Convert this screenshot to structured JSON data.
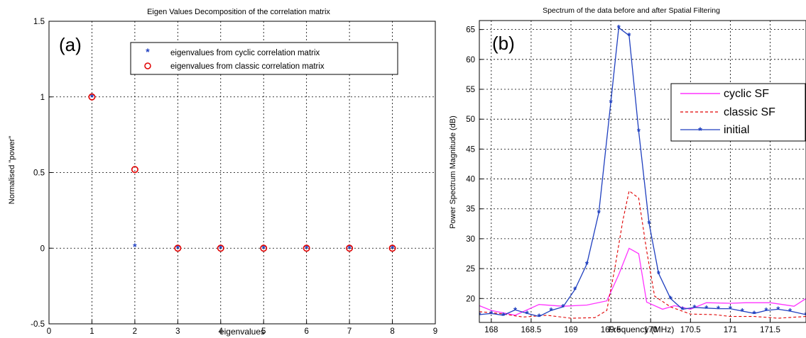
{
  "chart_data": [
    {
      "type": "scatter",
      "panel_label": "(a)",
      "title": "Eigen Values Decomposition of the correlation matrix",
      "xlabel": "eigenvalues",
      "ylabel": "Normalised \"power\"",
      "xlim": [
        0,
        9
      ],
      "ylim": [
        -0.5,
        1.5
      ],
      "xticks": [
        0,
        1,
        2,
        3,
        4,
        5,
        6,
        7,
        8,
        9
      ],
      "yticks": [
        -0.5,
        0,
        0.5,
        1,
        1.5
      ],
      "grid": true,
      "legend_position": "top-right",
      "series": [
        {
          "name": "eigenvalues from cyclic correlation matrix",
          "marker": "star",
          "color": "#1f3fbf",
          "x": [
            1,
            2,
            3,
            4,
            5,
            6,
            7,
            8
          ],
          "y": [
            1.0,
            0.01,
            0.0,
            0.0,
            0.0,
            0.0,
            0.0,
            0.0
          ]
        },
        {
          "name": "eigenvalues from classic correlation matrix",
          "marker": "circle",
          "color": "#e00000",
          "x": [
            1,
            2,
            3,
            4,
            5,
            6,
            7,
            8
          ],
          "y": [
            1.0,
            0.52,
            0.0,
            0.0,
            0.0,
            0.0,
            0.0,
            0.0
          ]
        }
      ]
    },
    {
      "type": "line",
      "panel_label": "(b)",
      "title": "Spectrum of the data before and after Spatial Filtering",
      "xlabel": "Frequency (MHz)",
      "ylabel": "Power Spectrum Magnitude (dB)",
      "xlim": [
        167.85,
        171.95
      ],
      "ylim": [
        16,
        66.5
      ],
      "xticks": [
        168,
        168.5,
        169,
        169.5,
        170,
        170.5,
        171,
        171.5
      ],
      "yticks": [
        20,
        25,
        30,
        35,
        40,
        45,
        50,
        55,
        60,
        65
      ],
      "grid": true,
      "legend_position": "right",
      "series": [
        {
          "name": "cyclic SF",
          "style": "solid",
          "color": "#ff33ff",
          "x": [
            167.85,
            168.0,
            168.3,
            168.6,
            168.9,
            169.2,
            169.45,
            169.6,
            169.73,
            169.85,
            169.95,
            170.15,
            170.3,
            170.5,
            170.7,
            171.0,
            171.2,
            171.5,
            171.8,
            171.95
          ],
          "y": [
            18.8,
            18.0,
            17.2,
            19.0,
            18.7,
            18.9,
            19.6,
            24.0,
            28.4,
            27.5,
            19.4,
            18.2,
            18.8,
            18.2,
            19.3,
            19.2,
            19.3,
            19.3,
            18.7,
            20.0
          ]
        },
        {
          "name": "classic SF",
          "style": "dashed",
          "color": "#e00000",
          "x": [
            167.85,
            168.1,
            168.4,
            168.7,
            169.0,
            169.3,
            169.45,
            169.55,
            169.65,
            169.73,
            169.85,
            169.95,
            170.05,
            170.25,
            170.5,
            170.8,
            171.0,
            171.3,
            171.6,
            171.95
          ],
          "y": [
            17.8,
            17.5,
            16.9,
            17.2,
            16.7,
            16.8,
            18.0,
            25.0,
            33.0,
            38.0,
            36.8,
            28.0,
            20.4,
            18.6,
            17.4,
            17.3,
            17.0,
            17.0,
            16.7,
            17.0
          ]
        },
        {
          "name": "initial",
          "style": "solid-star",
          "color": "#1f3fbf",
          "x": [
            167.85,
            168.0,
            168.15,
            168.3,
            168.45,
            168.6,
            168.75,
            168.9,
            169.05,
            169.2,
            169.35,
            169.5,
            169.6,
            169.73,
            169.85,
            169.98,
            170.1,
            170.25,
            170.4,
            170.55,
            170.7,
            170.85,
            171.0,
            171.15,
            171.3,
            171.45,
            171.6,
            171.75,
            171.95
          ],
          "y": [
            17.3,
            17.5,
            17.2,
            18.1,
            17.5,
            17.0,
            18.0,
            18.6,
            21.5,
            25.8,
            34.4,
            52.8,
            65.3,
            64.0,
            48.0,
            32.6,
            24.2,
            20.0,
            18.2,
            18.5,
            18.4,
            18.3,
            18.3,
            17.9,
            17.5,
            18.0,
            18.2,
            17.9,
            17.3
          ]
        }
      ]
    }
  ]
}
